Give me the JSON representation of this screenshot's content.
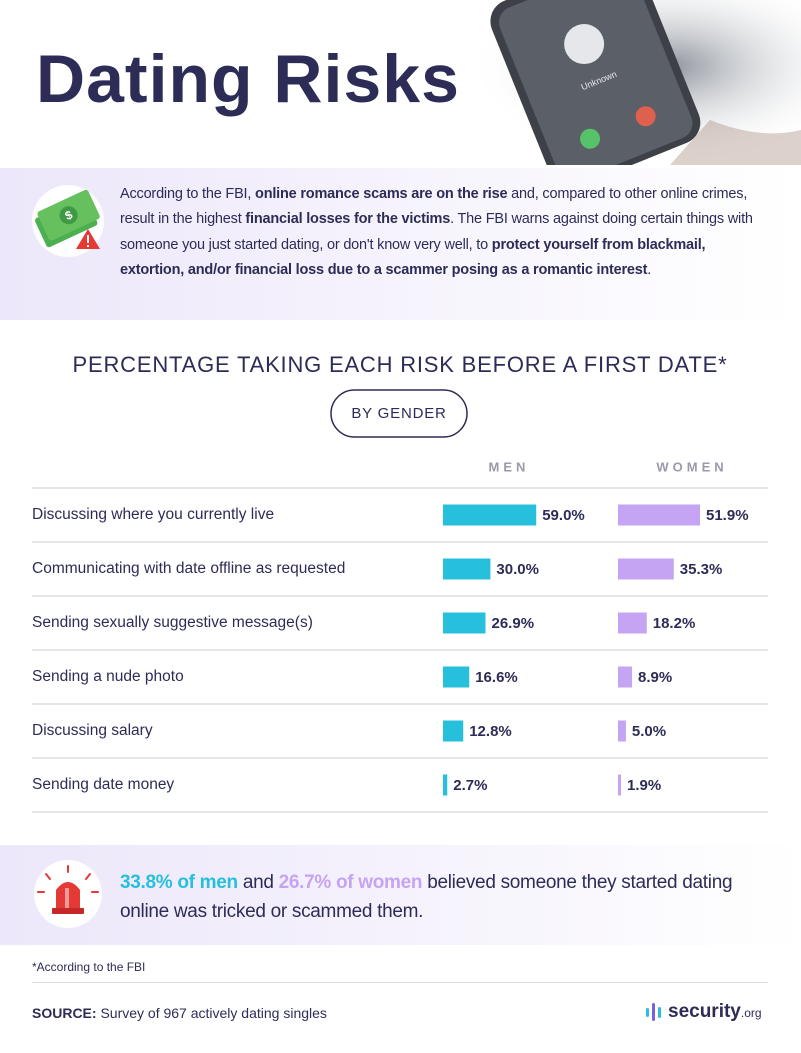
{
  "header": {
    "title": "Dating Risks",
    "phone_label": "Unknown"
  },
  "intro": [
    {
      "text": "According to the FBI, ",
      "bold": false
    },
    {
      "text": "online romance scams are on the rise",
      "bold": true
    },
    {
      "text": " and, compared to other online crimes, result in the highest ",
      "bold": false
    },
    {
      "text": "financial losses for the victims",
      "bold": true
    },
    {
      "text": ". The FBI warns against doing certain things with someone you just started dating, or don't know very well, to ",
      "bold": false
    },
    {
      "text": "protect yourself from blackmail, extortion, and/or financial loss due to a scammer posing as a romantic interest",
      "bold": true
    },
    {
      "text": ".",
      "bold": false
    }
  ],
  "chart_data": {
    "type": "bar",
    "title": "PERCENTAGE TAKING EACH RISK BEFORE A FIRST DATE*",
    "subtitle": "BY GENDER",
    "categories": [
      "Discussing where you currently live",
      "Communicating with date offline as requested",
      "Sending sexually suggestive message(s)",
      "Sending a nude photo",
      "Discussing salary",
      "Sending date money"
    ],
    "series": [
      {
        "name": "MEN",
        "color": "#26c0dc",
        "values": [
          59.0,
          30.0,
          26.9,
          16.6,
          12.8,
          2.7
        ],
        "value_labels": [
          "59.0%",
          "30.0%",
          "26.9%",
          "16.6%",
          "12.8%",
          "2.7%"
        ]
      },
      {
        "name": "WOMEN",
        "color": "#c4a4f3",
        "values": [
          51.9,
          35.3,
          18.2,
          8.9,
          5.0,
          1.9
        ],
        "value_labels": [
          "51.9%",
          "35.3%",
          "18.2%",
          "8.9%",
          "5.0%",
          "1.9%"
        ]
      }
    ]
  },
  "callout": [
    {
      "text": "33.8% of men",
      "color": "#26c0dc"
    },
    {
      "text": " and ",
      "color": null
    },
    {
      "text": "26.7% of women",
      "color": "#c4a4f3"
    },
    {
      "text": " believed someone they started dating online was tricked or scammed them.",
      "color": null
    }
  ],
  "footnote": "*According to the FBI",
  "source": {
    "label": "SOURCE:",
    "text": "Survey of 967 actively dating singles"
  },
  "logo": [
    "security",
    ".org"
  ]
}
